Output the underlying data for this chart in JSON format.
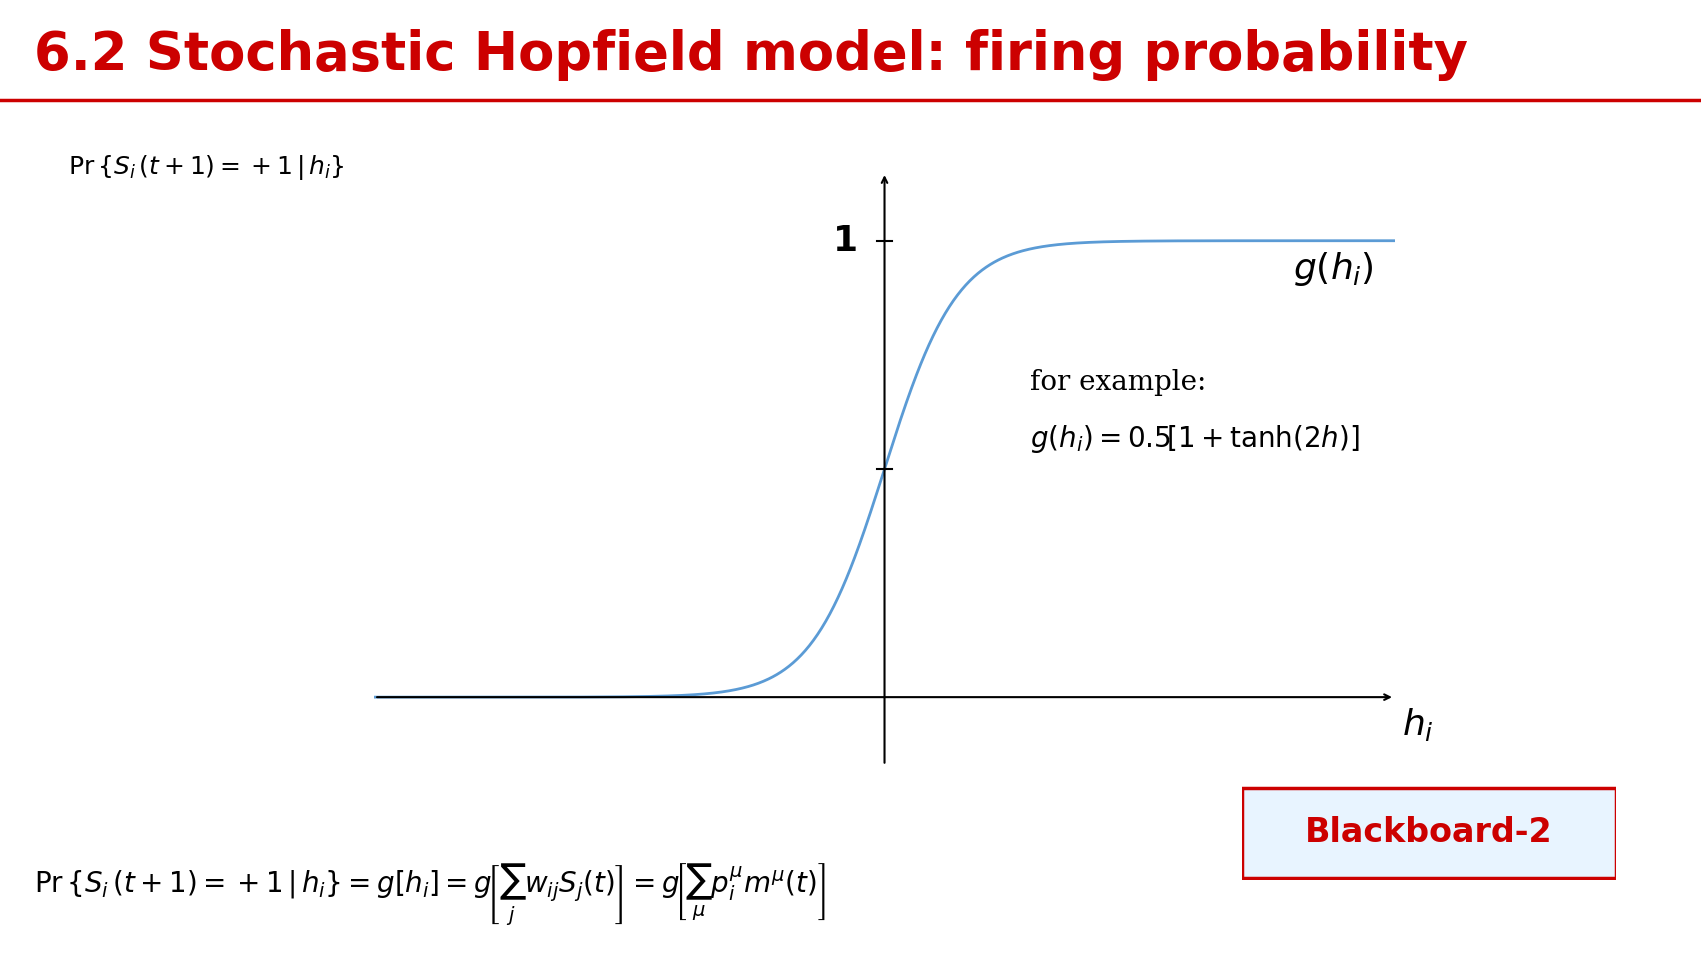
{
  "title": "6.2 Stochastic Hopfield model: firing probability",
  "title_color": "#cc0000",
  "title_fontsize": 38,
  "background_color": "#ffffff",
  "curve_color": "#5b9bd5",
  "curve_linewidth": 2.0,
  "axis_color": "#000000",
  "x_range": [
    -3.5,
    3.5
  ],
  "y_range": [
    -0.15,
    1.15
  ],
  "ylabel_text": "Pr{S_i (t+1) = +1 | h_i}",
  "xlabel_text": "h_i",
  "label_1": "g(h_i)",
  "label_for_example": "for example:",
  "label_formula": "g(h_i) = 0.5[1 + tanh(2h)]",
  "tick_1_label": "1",
  "blackboard_text": "Blackboard-2",
  "blackboard_color": "#cc0000",
  "bottom_formula": "Pr{S_i (t+1) = +1 | h_i} = g[h_i] = g[\\sum_j w_{ij} S_j(t)] = g[\\sum_\\mu p_i^\\mu m^\\mu(t)]"
}
